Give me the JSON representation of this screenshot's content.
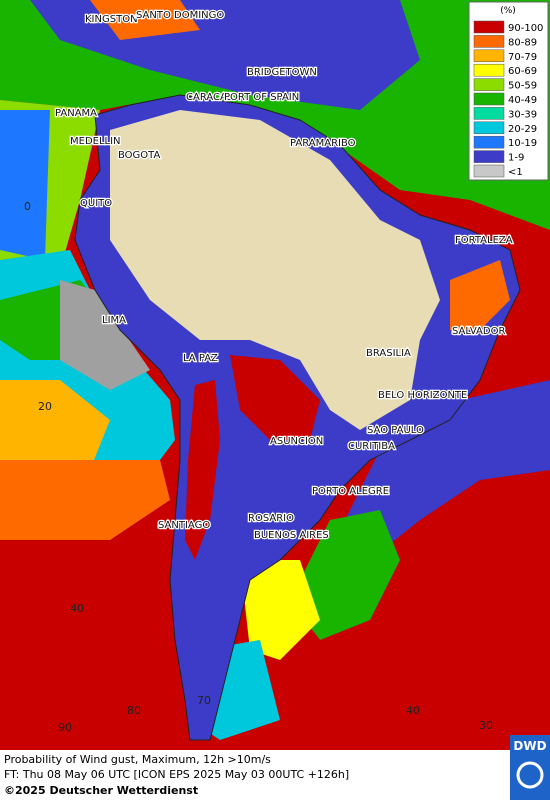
{
  "map": {
    "cities": [
      "KINGSTON",
      "SANTO DOMINGO",
      "BRIDGETOWN",
      "CARACAS",
      "PORT OF SPAIN",
      "PANAMA",
      "MEDELLIN",
      "BOGOTA",
      "PARAMARIBO",
      "QUITO",
      "FORTALEZA",
      "LIMA",
      "SALVADOR",
      "LA PAZ",
      "BRASILIA",
      "BELO HORIZONTE",
      "SAO PAULO",
      "ASUNCION",
      "CURITIBA",
      "PORTO ALEGRE",
      "ROSARIO",
      "BUENOS AIRES",
      "SANTIAGO"
    ],
    "latitude_labels": [
      "0",
      "20",
      "40"
    ],
    "longitude_labels": [
      "90",
      "80",
      "70",
      "40",
      "30"
    ],
    "legend": {
      "title": "(%)",
      "entries": [
        {
          "label": "90-100",
          "color": "#c80000"
        },
        {
          "label": "80-89",
          "color": "#ff6a00"
        },
        {
          "label": "70-79",
          "color": "#ffb400"
        },
        {
          "label": "60-69",
          "color": "#ffff00"
        },
        {
          "label": "50-59",
          "color": "#8cdc00"
        },
        {
          "label": "40-49",
          "color": "#18b400"
        },
        {
          "label": "30-39",
          "color": "#00dca0"
        },
        {
          "label": "20-29",
          "color": "#00c8dc"
        },
        {
          "label": "10-19",
          "color": "#1e78ff"
        },
        {
          "label": "1-9",
          "color": "#3c3cc8"
        },
        {
          "label": "<1",
          "color": "#c8c8c8"
        }
      ]
    },
    "footer": {
      "line1": "Probability of Wind gust, Maximum, 12h >10m/s",
      "line2": "FT: Thu 08 May 06 UTC [ICON EPS 2025 May 03 00UTC +126h]",
      "copyright": "©2025 Deutscher Wetterdienst"
    },
    "logo": "DWD"
  }
}
